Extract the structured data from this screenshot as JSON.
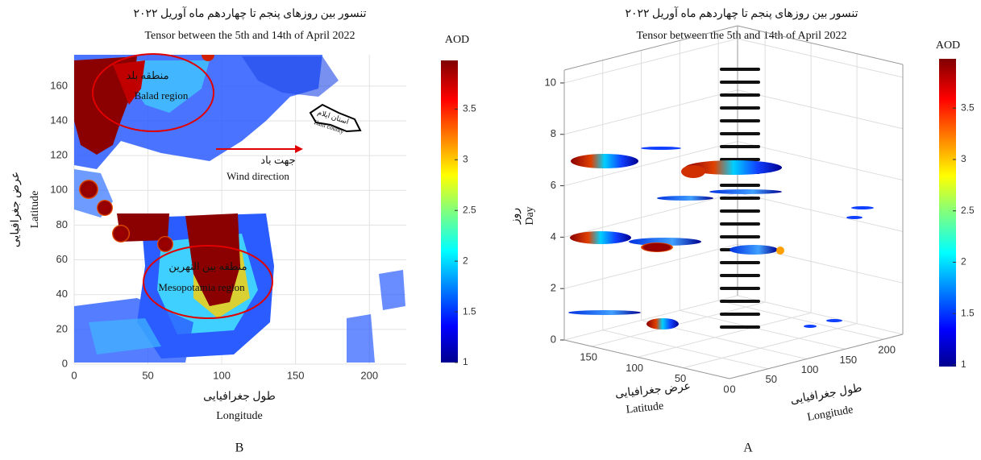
{
  "chart_data": [
    {
      "type": "heatmap",
      "panel": "B",
      "title": "تنسور بین روزهای پنجم تا چهاردهم ماه آوریل ۲۰۲۲",
      "subtitle": "Tensor between the 5th and 14th of April 2022",
      "xlabel": "طول جغرافیایی",
      "xlabel_en": "Longitude",
      "ylabel": "عرض جغرافیایی",
      "ylabel_en": "Latitude",
      "xlim": [
        0,
        225
      ],
      "xticks": [
        0,
        50,
        100,
        150,
        200
      ],
      "ylim": [
        0,
        178
      ],
      "yticks": [
        0,
        20,
        40,
        60,
        80,
        100,
        120,
        140,
        160
      ],
      "grid": true,
      "colorbar": {
        "label": "AOD",
        "lim": [
          1,
          3.98
        ],
        "ticks": [
          1,
          1.5,
          2,
          2.5,
          3,
          3.5
        ]
      },
      "annotations": [
        "منطقه بلد",
        "Balad region",
        "جهت باد",
        "Wind direction",
        "منطقه بین النهرین",
        "Mesopotamia region",
        "استان ایلام",
        "Ilam county"
      ]
    },
    {
      "type": "scatter3d",
      "panel": "A",
      "title": "تنسور بین روزهای پنجم تا چهاردهم ماه آوریل ۲۰۲۲",
      "subtitle": "Tensor between the 5th and 14th of April 2022",
      "xlabel": "طول جغرافیایی",
      "xlabel_en": "Longitude",
      "ylabel": "عرض جغرافیایی",
      "ylabel_en": "Latitude",
      "zlabel": "روز",
      "zlabel_en": "Day",
      "xlim": [
        0,
        225
      ],
      "xticks": [
        0,
        50,
        100,
        150,
        200
      ],
      "ylim": [
        0,
        180
      ],
      "yticks": [
        0,
        50,
        100,
        150
      ],
      "zlim": [
        0,
        10.5
      ],
      "zticks": [
        0,
        2,
        4,
        6,
        8,
        10
      ],
      "grid": true,
      "colorbar": {
        "label": "AOD",
        "lim": [
          1,
          3.98
        ],
        "ticks": [
          1,
          1.5,
          2,
          2.5,
          3,
          3.5
        ]
      }
    }
  ]
}
